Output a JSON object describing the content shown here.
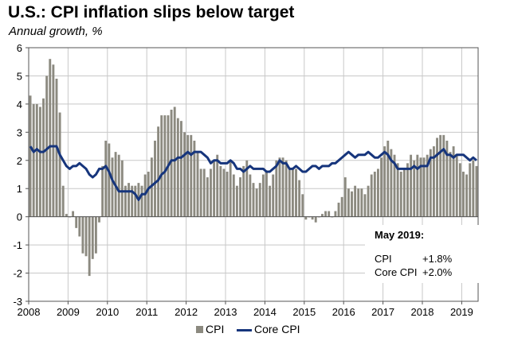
{
  "title": "U.S.: CPI inflation slips below target",
  "subtitle": "Annual growth, %",
  "annotation": {
    "heading": "May 2019:",
    "rows": [
      {
        "label": "CPI",
        "value": "+1.8%"
      },
      {
        "label": "Core CPI",
        "value": "+2.0%"
      }
    ]
  },
  "legend": {
    "cpi": "CPI",
    "core": "Core CPI"
  },
  "colors": {
    "cpi_bars": "#8c8a80",
    "core_line": "#16357c",
    "grid": "#c8c8c8",
    "axis": "#555555"
  },
  "chart_data": {
    "type": "bar",
    "title": "U.S.: CPI inflation slips below target",
    "subtitle": "Annual growth, %",
    "xlabel": "",
    "ylabel": "",
    "ylim": [
      -3,
      6
    ],
    "yticks": [
      "-3",
      "-2",
      "-1",
      "0",
      "1",
      "2",
      "3",
      "4",
      "5",
      "6"
    ],
    "xtick_labels": [
      "2008",
      "2009",
      "2010",
      "2011",
      "2012",
      "2013",
      "2014",
      "2015",
      "2016",
      "2017",
      "2018",
      "2019"
    ],
    "x_start": "2008-01",
    "x_end": "2019-05",
    "grid": true,
    "legend_position": "bottom",
    "series": [
      {
        "name": "CPI",
        "type": "bar",
        "values": [
          4.3,
          4.0,
          4.0,
          3.9,
          4.2,
          5.0,
          5.6,
          5.4,
          4.9,
          3.7,
          1.1,
          0.1,
          0.0,
          0.2,
          -0.4,
          -0.7,
          -1.3,
          -1.4,
          -2.1,
          -1.5,
          -1.3,
          -0.2,
          1.8,
          2.7,
          2.6,
          2.1,
          2.3,
          2.2,
          2.0,
          1.1,
          1.2,
          1.1,
          1.1,
          1.2,
          1.1,
          1.5,
          1.6,
          2.1,
          2.7,
          3.2,
          3.6,
          3.6,
          3.6,
          3.8,
          3.9,
          3.5,
          3.4,
          3.0,
          2.9,
          2.9,
          2.7,
          2.3,
          1.7,
          1.7,
          1.4,
          1.7,
          2.0,
          2.2,
          1.8,
          1.7,
          1.6,
          2.0,
          1.5,
          1.1,
          1.4,
          1.8,
          2.0,
          1.5,
          1.2,
          1.0,
          1.2,
          1.5,
          1.6,
          1.1,
          1.5,
          2.0,
          2.1,
          2.1,
          2.0,
          1.7,
          1.7,
          1.7,
          1.3,
          0.8,
          -0.1,
          0.0,
          -0.1,
          -0.2,
          0.0,
          0.1,
          0.2,
          0.2,
          0.0,
          0.2,
          0.5,
          0.7,
          1.4,
          1.0,
          0.9,
          1.1,
          1.0,
          1.0,
          0.8,
          1.1,
          1.5,
          1.6,
          1.7,
          2.1,
          2.5,
          2.7,
          2.4,
          2.2,
          1.9,
          1.6,
          1.7,
          1.9,
          2.2,
          2.0,
          2.2,
          2.1,
          2.1,
          2.2,
          2.4,
          2.5,
          2.8,
          2.9,
          2.9,
          2.7,
          2.3,
          2.5,
          2.2,
          1.9,
          1.6,
          1.5,
          1.9,
          2.0,
          1.8
        ]
      },
      {
        "name": "Core CPI",
        "type": "line",
        "values": [
          2.5,
          2.3,
          2.4,
          2.3,
          2.3,
          2.4,
          2.5,
          2.5,
          2.5,
          2.2,
          2.0,
          1.8,
          1.7,
          1.8,
          1.8,
          1.9,
          1.8,
          1.7,
          1.5,
          1.4,
          1.5,
          1.7,
          1.7,
          1.8,
          1.6,
          1.3,
          1.1,
          0.9,
          0.9,
          0.9,
          0.9,
          0.9,
          0.8,
          0.6,
          0.8,
          0.8,
          1.0,
          1.1,
          1.2,
          1.3,
          1.5,
          1.6,
          1.8,
          2.0,
          2.0,
          2.1,
          2.1,
          2.2,
          2.3,
          2.2,
          2.3,
          2.3,
          2.3,
          2.2,
          2.1,
          1.9,
          2.0,
          2.0,
          1.9,
          1.9,
          1.9,
          2.0,
          1.9,
          1.7,
          1.7,
          1.6,
          1.7,
          1.8,
          1.7,
          1.7,
          1.7,
          1.7,
          1.6,
          1.6,
          1.7,
          1.8,
          2.0,
          1.9,
          1.9,
          1.7,
          1.7,
          1.8,
          1.7,
          1.6,
          1.6,
          1.7,
          1.8,
          1.8,
          1.7,
          1.8,
          1.8,
          1.8,
          1.9,
          1.9,
          2.0,
          2.1,
          2.2,
          2.3,
          2.2,
          2.1,
          2.2,
          2.2,
          2.2,
          2.3,
          2.2,
          2.1,
          2.1,
          2.2,
          2.3,
          2.2,
          2.0,
          1.9,
          1.7,
          1.7,
          1.7,
          1.7,
          1.7,
          1.8,
          1.7,
          1.8,
          1.8,
          1.8,
          2.1,
          2.1,
          2.2,
          2.3,
          2.4,
          2.2,
          2.2,
          2.1,
          2.2,
          2.2,
          2.2,
          2.1,
          2.0,
          2.1,
          2.0
        ]
      }
    ]
  }
}
